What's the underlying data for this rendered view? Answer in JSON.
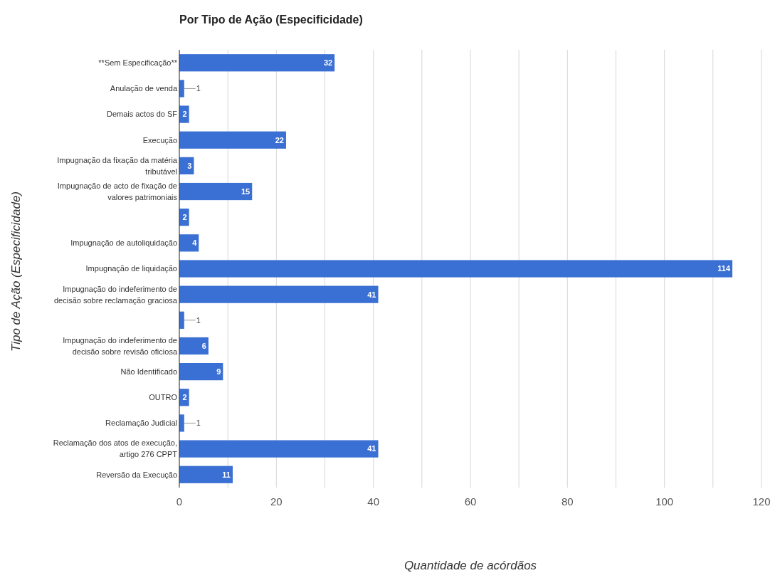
{
  "chart_data": {
    "type": "bar",
    "orientation": "horizontal",
    "title": "Por Tipo de Ação (Especificidade)",
    "xlabel": "Quantidade de acórdãos",
    "ylabel": "Tipo de Ação (Especificidade)",
    "categories": [
      "**Sem Especificação**",
      "Anulação de venda",
      "Demais actos do SF",
      "Execução",
      "Impugnação da fixação da matéria tributável",
      "Impugnação de acto de fixação de valores patrimoniais",
      null,
      "Impugnação de autoliquidação",
      "Impugnação de liquidação",
      "Impugnação do indeferimento de decisão sobre reclamação graciosa",
      null,
      "Impugnação do indeferimento de decisão sobre revisão oficiosa",
      "Não Identificado",
      "OUTRO",
      "Reclamação Judicial",
      "Reclamação dos atos de execução, artigo 276 CPPT",
      "Reversão da Execução"
    ],
    "values": [
      32,
      1,
      2,
      22,
      3,
      15,
      2,
      4,
      114,
      41,
      1,
      6,
      9,
      2,
      1,
      41,
      11
    ],
    "color": "#3a6fd3",
    "xlim": [
      0,
      120
    ],
    "xticks": [
      0,
      {
        "value": 10,
        "label": null
      },
      20,
      {
        "value": 30,
        "label": null
      },
      40,
      {
        "value": 50,
        "label": null
      },
      60,
      {
        "value": 70,
        "label": null
      },
      80,
      {
        "value": 90,
        "label": null
      },
      100,
      {
        "value": 110,
        "label": null
      },
      120
    ],
    "grid": "x",
    "data_labels": true
  }
}
